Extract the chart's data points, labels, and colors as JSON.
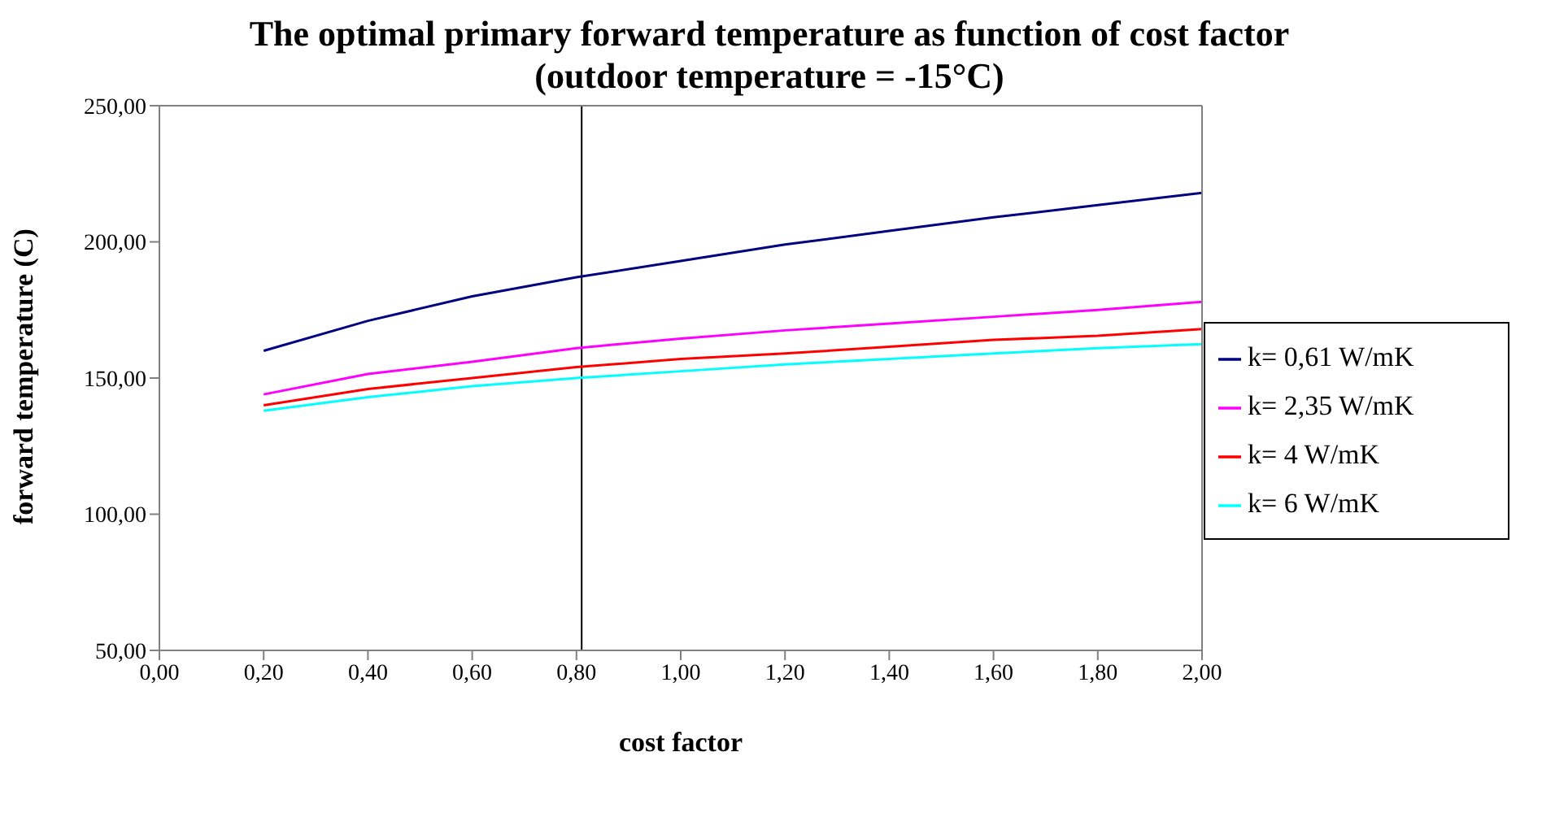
{
  "chart_data": {
    "type": "line",
    "title": "The optimal primary forward temperature as function of cost factor",
    "subtitle": "(outdoor temperature = -15°C)",
    "xlabel": "cost factor",
    "ylabel": "forward temperature (C)",
    "x": [
      0.2,
      0.4,
      0.6,
      0.8,
      1.0,
      1.2,
      1.4,
      1.6,
      1.8,
      2.0
    ],
    "series": [
      {
        "name": "k= 0,61 W/mK",
        "color": "#000080",
        "values": [
          160,
          171,
          180,
          187,
          193,
          199,
          204,
          209,
          213.5,
          218
        ]
      },
      {
        "name": "k= 2,35 W/mK",
        "color": "#ff00ff",
        "values": [
          144,
          151.5,
          156,
          161,
          164.5,
          167.5,
          170,
          172.5,
          175,
          178
        ]
      },
      {
        "name": "k= 4 W/mK",
        "color": "#ff0000",
        "values": [
          140,
          146,
          150,
          154,
          157,
          159,
          161.5,
          164,
          165.5,
          168
        ]
      },
      {
        "name": "k= 6 W/mK",
        "color": "#00ffff",
        "values": [
          138,
          143,
          147,
          150,
          152.5,
          155,
          157,
          159,
          161,
          162.5
        ]
      }
    ],
    "xlim": [
      0,
      2
    ],
    "xticks": [
      {
        "value": 0,
        "label": "0,00"
      },
      {
        "value": 0.2,
        "label": "0,20"
      },
      {
        "value": 0.4,
        "label": "0,40"
      },
      {
        "value": 0.6,
        "label": "0,60"
      },
      {
        "value": 0.8,
        "label": "0,80"
      },
      {
        "value": 1.0,
        "label": "1,00"
      },
      {
        "value": 1.2,
        "label": "1,20"
      },
      {
        "value": 1.4,
        "label": "1,40"
      },
      {
        "value": 1.6,
        "label": "1,60"
      },
      {
        "value": 1.8,
        "label": "1,80"
      },
      {
        "value": 2.0,
        "label": "2,00"
      }
    ],
    "ylim": [
      50,
      250
    ],
    "yticks": [
      {
        "value": 50,
        "label": "50,00"
      },
      {
        "value": 100,
        "label": "100,00"
      },
      {
        "value": 150,
        "label": "150,00"
      },
      {
        "value": 200,
        "label": "200,00"
      },
      {
        "value": 250,
        "label": "250,00"
      }
    ],
    "ref_lines": [
      {
        "axis": "x",
        "value": 0.81,
        "color": "#000000"
      }
    ],
    "grid": false,
    "legend": "right",
    "marker": "none",
    "line_style": "solid"
  }
}
